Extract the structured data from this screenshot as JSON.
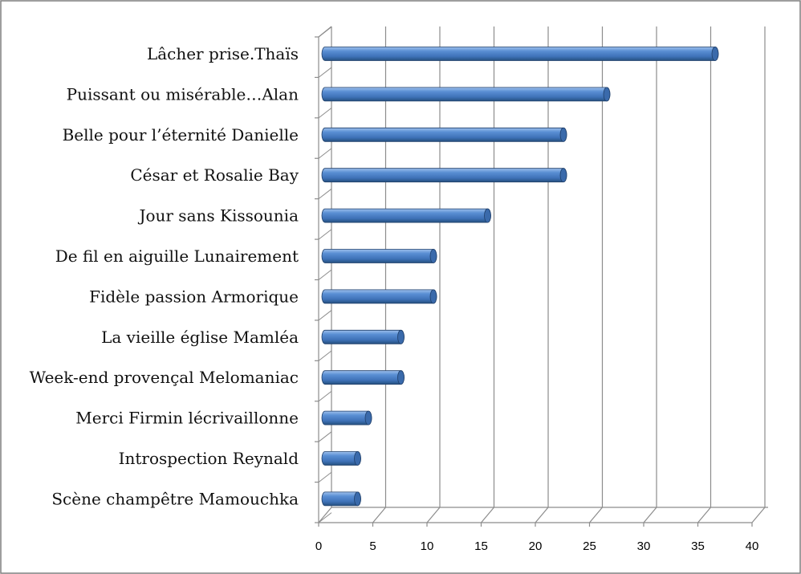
{
  "chart_data": {
    "type": "bar",
    "orientation": "horizontal",
    "style": "3d-cylinder",
    "categories": [
      "Lâcher prise.Thaïs",
      "Puissant ou misérable…Alan",
      "Belle pour l’éternité Danielle",
      "César et Rosalie  Bay",
      "Jour sans  Kissounia",
      "De fil en aiguille Lunairement",
      "Fidèle passion Armorique",
      "La vieille église Mamléa",
      "Week-end provençal Melomaniac",
      "Merci Firmin lécrivaillonne",
      "Introspection  Reynald",
      "Scène champêtre Mamouchka"
    ],
    "values": [
      36,
      26,
      22,
      22,
      15,
      10,
      10,
      7,
      7,
      4,
      3,
      3
    ],
    "xlim": [
      0,
      40
    ],
    "xticks": [
      0,
      5,
      10,
      15,
      20,
      25,
      30,
      35,
      40
    ],
    "grid": true,
    "legend": "none",
    "title": "",
    "xlabel": "",
    "ylabel": "",
    "colors": {
      "bar": "#4a7ec4",
      "bar_light": "#9ec0ec",
      "bar_dark": "#23497c",
      "gridline": "#8c8c8c",
      "border": "#7f7f7f"
    }
  }
}
